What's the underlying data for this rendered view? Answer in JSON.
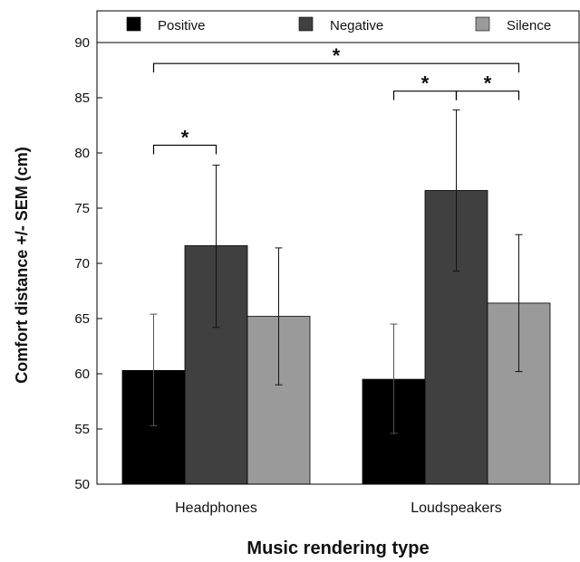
{
  "chart_data": {
    "type": "bar",
    "categories": [
      "Headphones",
      "Loudspeakers"
    ],
    "series": [
      {
        "name": "Positive",
        "color": "#000000",
        "values": [
          60.3,
          59.5
        ],
        "err_low": [
          55.3,
          54.6
        ],
        "err_high": [
          65.4,
          64.5
        ]
      },
      {
        "name": "Negative",
        "color": "#404040",
        "values": [
          71.6,
          76.6
        ],
        "err_low": [
          64.2,
          69.3
        ],
        "err_high": [
          78.9,
          83.9
        ]
      },
      {
        "name": "Silence",
        "color": "#9a9a9a",
        "values": [
          65.2,
          66.4
        ],
        "err_low": [
          59.0,
          60.2
        ],
        "err_high": [
          71.4,
          72.6
        ]
      }
    ],
    "xlabel": "Music rendering type",
    "ylabel": "Comfort distance +/- SEM (cm)",
    "ylim": [
      50,
      90
    ],
    "yticks": [
      "50",
      "55",
      "60",
      "65",
      "70",
      "75",
      "80",
      "85",
      "90"
    ],
    "legend_position": "top",
    "significance": [
      {
        "label": "*",
        "from": {
          "category": 0,
          "series": 0
        },
        "to": {
          "category": 0,
          "series": 1
        },
        "level": 80.7
      },
      {
        "label": "*",
        "from": {
          "category": 1,
          "series": 0
        },
        "to": {
          "category": 1,
          "series": 1
        },
        "level": 85.6
      },
      {
        "label": "*",
        "from": {
          "category": 1,
          "series": 1
        },
        "to": {
          "category": 1,
          "series": 2
        },
        "level": 85.6
      },
      {
        "label": "*",
        "from": {
          "category": 0,
          "series": 0
        },
        "to": {
          "category": 1,
          "series": 2
        },
        "level": 88.1
      }
    ]
  }
}
